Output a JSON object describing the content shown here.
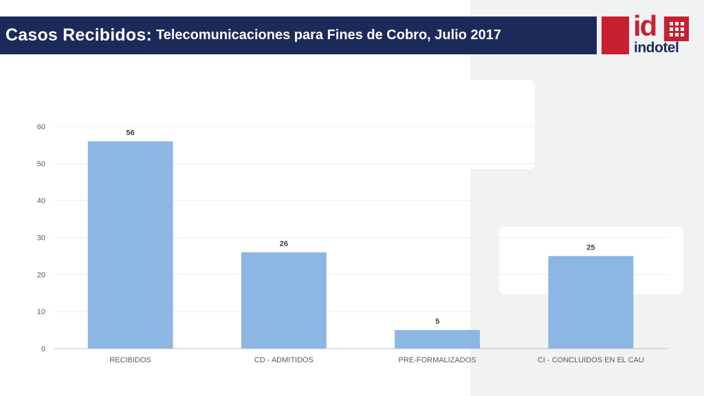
{
  "header": {
    "title_main": "Casos Recibidos:",
    "title_sub": "Telecomunicaciones para Fines de Cobro, Julio 2017"
  },
  "logo": {
    "mark": "id",
    "name": "indotel",
    "colors": {
      "red": "#c8202f",
      "navy": "#1c2a5a"
    }
  },
  "chart_data": {
    "type": "bar",
    "title": "",
    "xlabel": "",
    "ylabel": "",
    "categories": [
      "RECIBIDOS",
      "CD - ADMITIDOS",
      "PRE-FORMALIZADOS",
      "CI - CONCLUIDOS EN EL CAU"
    ],
    "values": [
      56,
      26,
      5,
      25
    ],
    "ylim": [
      0,
      60
    ],
    "yticks": [
      "0",
      "10",
      "20",
      "30",
      "40",
      "50",
      "60"
    ],
    "grid": true,
    "legend": "none",
    "bar_color": "#8db7e3"
  }
}
